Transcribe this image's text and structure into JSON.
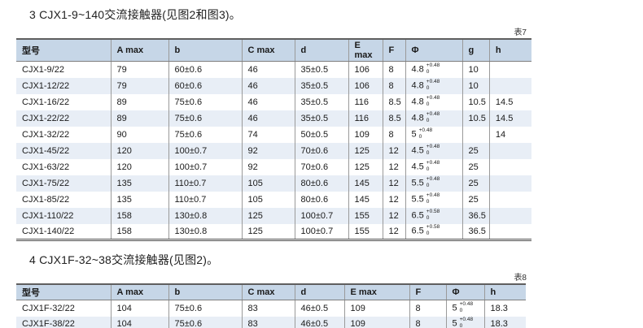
{
  "colors": {
    "header_bg": "#c6d6e7",
    "stripe_bg": "#e8eef6",
    "top_border": "#5f5f5f",
    "column_border": "#9a9a9a",
    "text": "#1a1a1a"
  },
  "sections": [
    {
      "title": "3 CJX1-9~140交流接触器(见图2和图3)。",
      "table_label": "表7",
      "columns": [
        "型号",
        "A max",
        "b",
        "C max",
        "d",
        "E max",
        "F",
        "Φ",
        "g",
        "h"
      ],
      "rows": [
        [
          "CJX1-9/22",
          "79",
          "60±0.6",
          "46",
          "35±0.5",
          "106",
          "8",
          {
            "base": "4.8",
            "sup": "+0.48",
            "sub": "0"
          },
          "10",
          ""
        ],
        [
          "CJX1-12/22",
          "79",
          "60±0.6",
          "46",
          "35±0.5",
          "106",
          "8",
          {
            "base": "4.8",
            "sup": "+0.48",
            "sub": "0"
          },
          "10",
          ""
        ],
        [
          "CJX1-16/22",
          "89",
          "75±0.6",
          "46",
          "35±0.5",
          "116",
          "8.5",
          {
            "base": "4.8",
            "sup": "+0.48",
            "sub": "0"
          },
          "10.5",
          "14.5"
        ],
        [
          "CJX1-22/22",
          "89",
          "75±0.6",
          "46",
          "35±0.5",
          "116",
          "8.5",
          {
            "base": "4.8",
            "sup": "+0.48",
            "sub": "0"
          },
          "10.5",
          "14.5"
        ],
        [
          "CJX1-32/22",
          "90",
          "75±0.6",
          "74",
          "50±0.5",
          "109",
          "8",
          {
            "base": "5",
            "sup": "+0.48",
            "sub": "0"
          },
          "",
          "14"
        ],
        [
          "CJX1-45/22",
          "120",
          "100±0.7",
          "92",
          "70±0.6",
          "125",
          "12",
          {
            "base": "4.5",
            "sup": "+0.48",
            "sub": "0"
          },
          "25",
          ""
        ],
        [
          "CJX1-63/22",
          "120",
          "100±0.7",
          "92",
          "70±0.6",
          "125",
          "12",
          {
            "base": "4.5",
            "sup": "+0.48",
            "sub": "0"
          },
          "25",
          ""
        ],
        [
          "CJX1-75/22",
          "135",
          "110±0.7",
          "105",
          "80±0.6",
          "145",
          "12",
          {
            "base": "5.5",
            "sup": "+0.48",
            "sub": "0"
          },
          "25",
          ""
        ],
        [
          "CJX1-85/22",
          "135",
          "110±0.7",
          "105",
          "80±0.6",
          "145",
          "12",
          {
            "base": "5.5",
            "sup": "+0.48",
            "sub": "0"
          },
          "25",
          ""
        ],
        [
          "CJX1-110/22",
          "158",
          "130±0.8",
          "125",
          "100±0.7",
          "155",
          "12",
          {
            "base": "6.5",
            "sup": "+0.58",
            "sub": "0"
          },
          "36.5",
          ""
        ],
        [
          "CJX1-140/22",
          "158",
          "130±0.8",
          "125",
          "100±0.7",
          "155",
          "12",
          {
            "base": "6.5",
            "sup": "+0.58",
            "sub": "0"
          },
          "36.5",
          ""
        ]
      ]
    },
    {
      "title": "4 CJX1F-32~38交流接触器(见图2)。",
      "table_label": "表8",
      "columns": [
        "型号",
        "A max",
        "b",
        "C max",
        "d",
        "E max",
        "F",
        "Φ",
        "h"
      ],
      "rows": [
        [
          "CJX1F-32/22",
          "104",
          "75±0.6",
          "83",
          "46±0.5",
          "109",
          "8",
          {
            "base": "5",
            "sup": "+0.48",
            "sub": "0"
          },
          "18.3"
        ],
        [
          "CJX1F-38/22",
          "104",
          "75±0.6",
          "83",
          "46±0.5",
          "109",
          "8",
          {
            "base": "5",
            "sup": "+0.48",
            "sub": "0"
          },
          "18.3"
        ]
      ]
    }
  ]
}
